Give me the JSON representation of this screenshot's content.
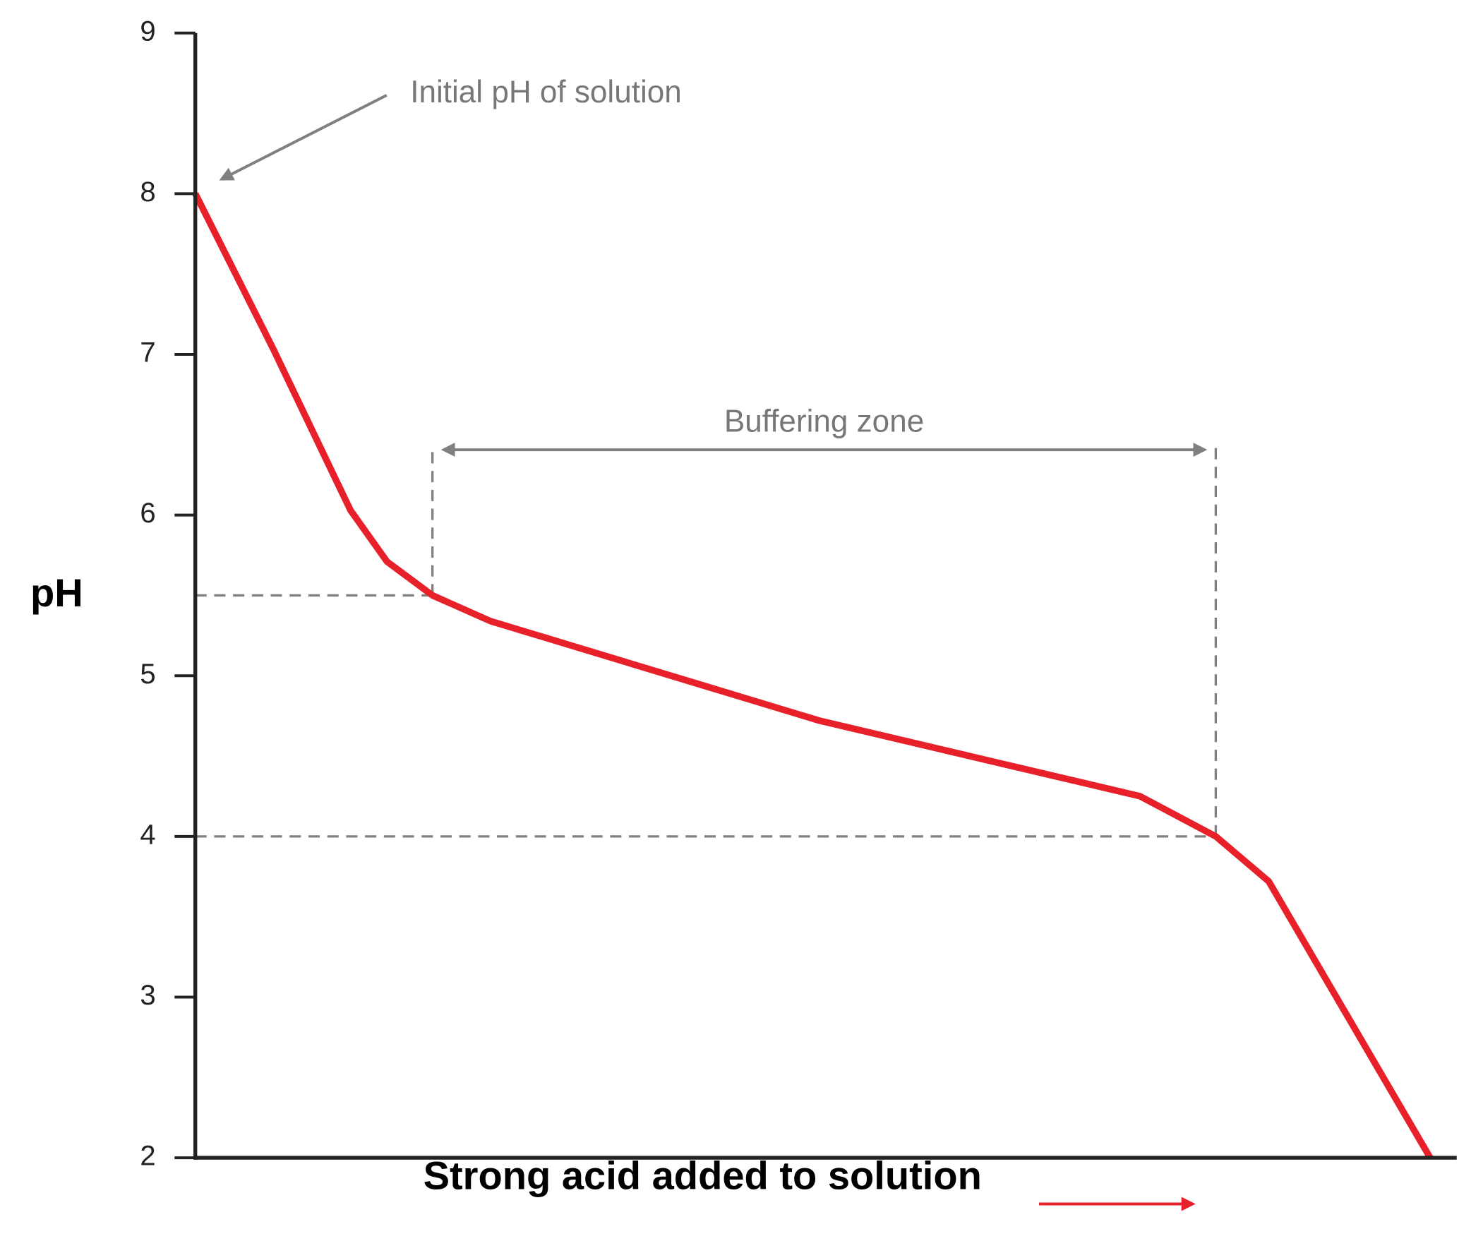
{
  "chart_data": {
    "type": "line",
    "y_label": "pH",
    "x_label": "Strong acid added to solution",
    "annotations": {
      "initial": "Initial pH of solution",
      "buffer": "Buffering zone"
    },
    "xlim": [
      0,
      100
    ],
    "ylim": [
      2,
      9
    ],
    "yticks": [
      2,
      3,
      4,
      5,
      6,
      7,
      8,
      9
    ],
    "series": [
      {
        "color": "#e8202a",
        "x": [
          0,
          6.2,
          12.3,
          15.2,
          18.8,
          23.4,
          49.5,
          74.9,
          80.9,
          85.1,
          97.9
        ],
        "values": [
          8.0,
          7.03,
          6.03,
          5.71,
          5.5,
          5.34,
          4.72,
          4.25,
          4.0,
          3.72,
          2.0
        ]
      }
    ],
    "buffer_zone": {
      "x_start": 18.8,
      "x_end": 80.9,
      "ph_high": 5.5,
      "ph_low": 4.0
    }
  }
}
